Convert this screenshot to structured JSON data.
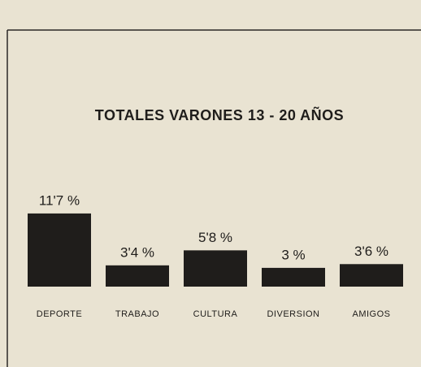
{
  "chart_data": {
    "type": "bar",
    "title": "TOTALES VARONES 13 - 20 AÑOS",
    "categories": [
      "DEPORTE",
      "TRABAJO",
      "CULTURA",
      "DIVERSION",
      "AMIGOS"
    ],
    "values": [
      11.7,
      3.4,
      5.8,
      3,
      3.6
    ],
    "value_labels": [
      "11'7 %",
      "3'4 %",
      "5'8 %",
      "3 %",
      "3'6 %"
    ],
    "color": "#1f1d1b"
  }
}
